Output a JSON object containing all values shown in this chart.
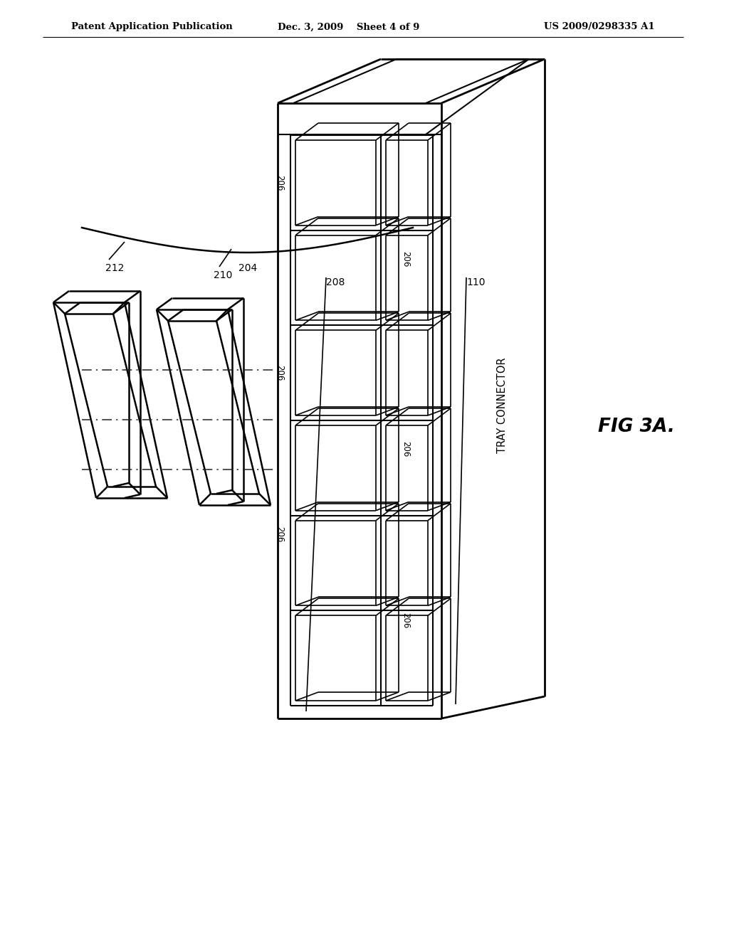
{
  "header_left": "Patent Application Publication",
  "header_center": "Dec. 3, 2009    Sheet 4 of 9",
  "header_right": "US 2009/0298335 A1",
  "fig_label": "FIG 3A.",
  "tray_connector_label": "TRAY CONNECTOR",
  "label_206": "206",
  "label_210": "210",
  "label_212": "212",
  "label_208": "208",
  "label_204": "204",
  "label_110": "110",
  "bg_color": "#ffffff",
  "line_color": "#000000",
  "n_slots": 6
}
